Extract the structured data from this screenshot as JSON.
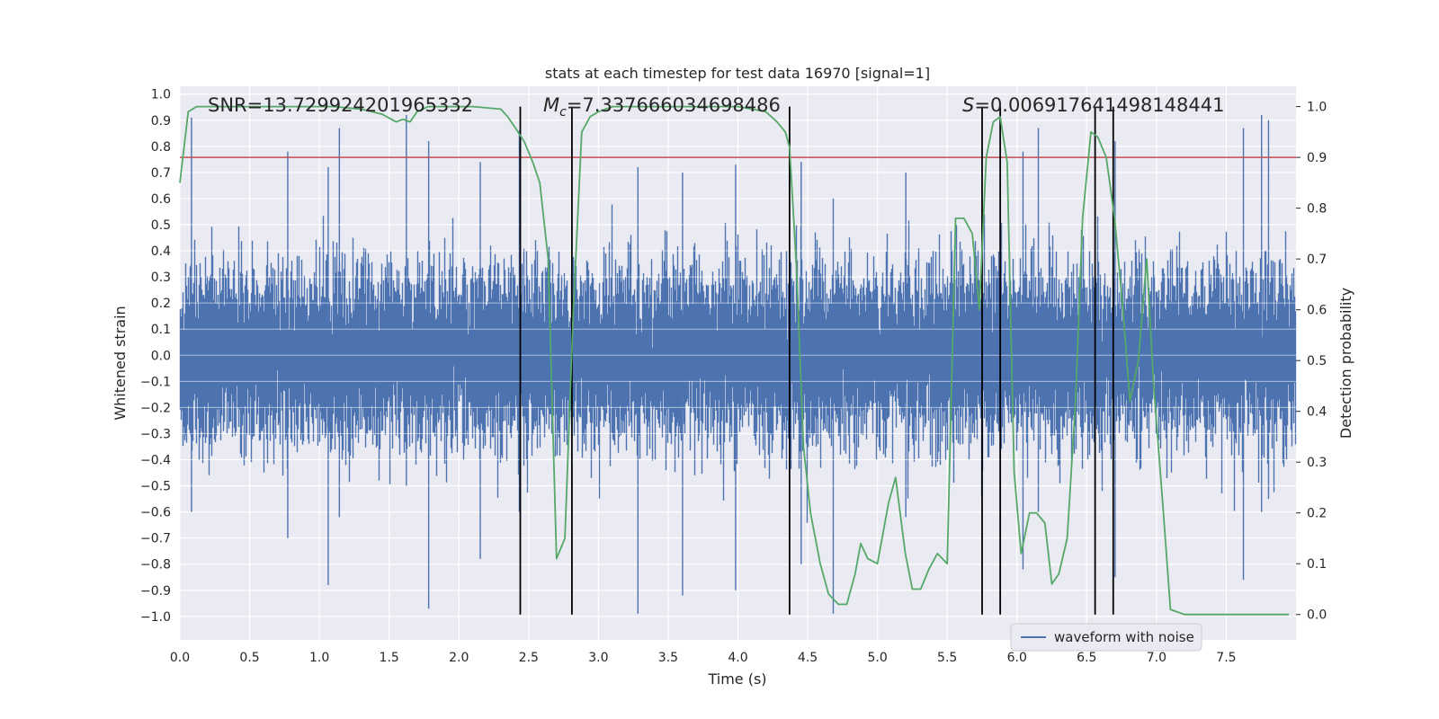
{
  "chart_data": {
    "type": "line",
    "title": "stats at each timestep for test data 16970 [signal=1]",
    "xlabel": "Time (s)",
    "ylabel": "Whitened strain",
    "y2label": "Detection probability",
    "xlim": [
      0.0,
      8.0
    ],
    "ylim": [
      -1.09,
      1.03
    ],
    "y2lim": [
      -0.05,
      1.04
    ],
    "xticks": [
      0.0,
      0.5,
      1.0,
      1.5,
      2.0,
      2.5,
      3.0,
      3.5,
      4.0,
      4.5,
      5.0,
      5.5,
      6.0,
      6.5,
      7.0,
      7.5
    ],
    "xtick_labels": [
      "0.0",
      "0.5",
      "1.0",
      "1.5",
      "2.0",
      "2.5",
      "3.0",
      "3.5",
      "4.0",
      "4.5",
      "5.0",
      "5.5",
      "6.0",
      "6.5",
      "7.0",
      "7.5"
    ],
    "yticks": [
      1.0,
      0.9,
      0.8,
      0.7,
      0.6,
      0.5,
      0.4,
      0.3,
      0.2,
      0.1,
      0.0,
      -0.1,
      -0.2,
      -0.3,
      -0.4,
      -0.5,
      -0.6,
      -0.7,
      -0.8,
      -0.9,
      -1.0
    ],
    "ytick_labels": [
      "1.0",
      "0.9",
      "0.8",
      "0.7",
      "0.6",
      "0.5",
      "0.4",
      "0.3",
      "0.2",
      "0.1",
      "0.0",
      "−0.1",
      "−0.2",
      "−0.3",
      "−0.4",
      "−0.5",
      "−0.6",
      "−0.7",
      "−0.8",
      "−0.9",
      "−1.0"
    ],
    "y2ticks": [
      1.0,
      0.9,
      0.8,
      0.7,
      0.6,
      0.5,
      0.4,
      0.3,
      0.2,
      0.1,
      0.0
    ],
    "y2tick_labels": [
      "1.0",
      "0.9",
      "0.8",
      "0.7",
      "0.6",
      "0.5",
      "0.4",
      "0.3",
      "0.2",
      "0.1",
      "0.0"
    ],
    "annotations": {
      "snr": "SNR=13.729924201965332",
      "mc_symbol": "M",
      "mc_subscript": "c",
      "mc_value": "=7.337666034698486",
      "s_symbol": "S",
      "s_value": "=0.006917641498148441"
    },
    "threshold": 0.9,
    "vlines": [
      2.44,
      2.81,
      4.37,
      5.75,
      5.88,
      6.56,
      6.69
    ],
    "legend": {
      "label": "waveform with noise",
      "position": "bottom-right"
    },
    "series": [
      {
        "name": "waveform with noise",
        "axis": "left",
        "style": "bars",
        "sample_rate": 2048,
        "seed": 16970,
        "spikes": [
          {
            "t": 0.08,
            "hi": 0.91,
            "lo": -0.6
          },
          {
            "t": 0.77,
            "hi": 0.78,
            "lo": -0.7
          },
          {
            "t": 1.14,
            "hi": 0.87,
            "lo": -0.62
          },
          {
            "t": 1.62,
            "hi": 0.92,
            "lo": -0.5
          },
          {
            "t": 1.78,
            "hi": 0.82,
            "lo": -0.97
          },
          {
            "t": 2.15,
            "hi": 0.74,
            "lo": -0.78
          },
          {
            "t": 1.06,
            "hi": 0.72,
            "lo": -0.88
          },
          {
            "t": 2.43,
            "hi": 0.86,
            "lo": -0.6
          },
          {
            "t": 3.28,
            "hi": 0.72,
            "lo": -0.99
          },
          {
            "t": 3.6,
            "hi": 0.7,
            "lo": -0.92
          },
          {
            "t": 3.98,
            "hi": 0.73,
            "lo": -0.9
          },
          {
            "t": 4.45,
            "hi": 0.74,
            "lo": -0.8
          },
          {
            "t": 4.68,
            "hi": 0.6,
            "lo": -0.99
          },
          {
            "t": 6.04,
            "hi": 0.78,
            "lo": -0.82
          },
          {
            "t": 6.15,
            "hi": 0.87,
            "lo": -0.6
          },
          {
            "t": 6.7,
            "hi": 0.82,
            "lo": -0.85
          },
          {
            "t": 7.62,
            "hi": 0.87,
            "lo": -0.86
          },
          {
            "t": 7.75,
            "hi": 0.92,
            "lo": -0.6
          },
          {
            "t": 7.8,
            "hi": 0.9,
            "lo": -0.55
          },
          {
            "t": 5.2,
            "hi": 0.7,
            "lo": -0.62
          }
        ]
      },
      {
        "name": "detection probability",
        "axis": "right",
        "style": "line",
        "color": "#55a868",
        "x": [
          0.0,
          0.06,
          0.12,
          0.2,
          0.3,
          0.5,
          0.7,
          0.9,
          1.1,
          1.3,
          1.45,
          1.55,
          1.6,
          1.65,
          1.7,
          1.78,
          1.9,
          2.1,
          2.3,
          2.35,
          2.4,
          2.47,
          2.53,
          2.58,
          2.64,
          2.7,
          2.76,
          2.82,
          2.88,
          2.94,
          3.0,
          3.1,
          3.2,
          3.4,
          3.6,
          3.8,
          4.0,
          4.2,
          4.28,
          4.34,
          4.37,
          4.42,
          4.47,
          4.52,
          4.59,
          4.65,
          4.72,
          4.78,
          4.84,
          4.88,
          4.93,
          5.0,
          5.08,
          5.13,
          5.2,
          5.25,
          5.31,
          5.37,
          5.43,
          5.5,
          5.56,
          5.62,
          5.68,
          5.73,
          5.78,
          5.83,
          5.88,
          5.93,
          5.98,
          6.03,
          6.09,
          6.14,
          6.2,
          6.25,
          6.3,
          6.36,
          6.42,
          6.47,
          6.53,
          6.58,
          6.64,
          6.7,
          6.76,
          6.81,
          6.87,
          6.93,
          6.98,
          7.05,
          7.1,
          7.2,
          7.3,
          7.5,
          7.7,
          7.95
        ],
        "values": [
          0.85,
          0.99,
          1.0,
          1.0,
          1.0,
          1.0,
          1.0,
          1.0,
          1.0,
          0.995,
          0.985,
          0.97,
          0.975,
          0.97,
          0.99,
          1.0,
          1.0,
          1.0,
          0.995,
          0.98,
          0.96,
          0.93,
          0.89,
          0.85,
          0.7,
          0.11,
          0.15,
          0.6,
          0.95,
          0.98,
          0.99,
          1.0,
          1.0,
          1.0,
          1.0,
          1.0,
          1.0,
          0.99,
          0.97,
          0.95,
          0.92,
          0.68,
          0.33,
          0.2,
          0.1,
          0.04,
          0.02,
          0.02,
          0.08,
          0.14,
          0.11,
          0.1,
          0.22,
          0.27,
          0.12,
          0.05,
          0.05,
          0.09,
          0.12,
          0.1,
          0.78,
          0.78,
          0.75,
          0.6,
          0.9,
          0.97,
          0.98,
          0.89,
          0.28,
          0.12,
          0.2,
          0.2,
          0.18,
          0.06,
          0.08,
          0.15,
          0.42,
          0.78,
          0.95,
          0.94,
          0.9,
          0.78,
          0.6,
          0.42,
          0.5,
          0.7,
          0.45,
          0.2,
          0.01,
          0.0,
          0.0,
          0.0,
          0.0,
          0.0
        ]
      }
    ]
  }
}
